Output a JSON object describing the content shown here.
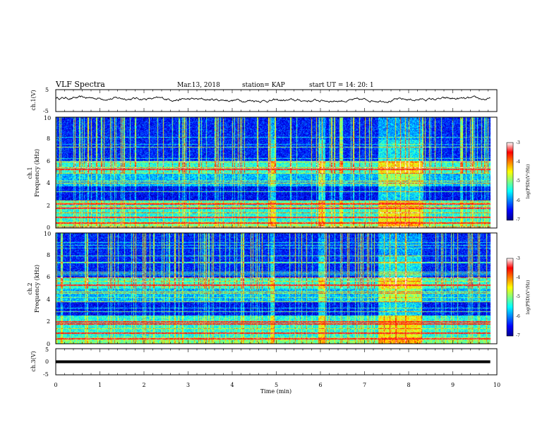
{
  "header": {
    "title": "VLF Spectra",
    "date": "Mar.13, 2018",
    "station": "station= KAP",
    "start_ut": "start  UT =   14: 20: 1"
  },
  "chart_data": [
    {
      "type": "line",
      "id": "ch1-waveform",
      "ylabel": "ch.1(V)",
      "ylim": [
        -5,
        5
      ],
      "yticks": [
        "5",
        "-5"
      ],
      "xlim": [
        0,
        9.85
      ],
      "mean": 0.6,
      "amplitude": 1.6
    },
    {
      "type": "heatmap",
      "id": "ch1-spectrogram",
      "ylabel_top": "ch.1",
      "ylabel": "Frequency  (kHz)",
      "ylim": [
        0,
        10
      ],
      "yticks": [
        "0",
        "2",
        "4",
        "6",
        "8",
        "10"
      ],
      "xlim": [
        0,
        9.85
      ],
      "colorbar": {
        "label": "log(PSD)(V²/Hz)",
        "range": [
          -7,
          -3
        ],
        "ticks": [
          "-3",
          "-4",
          "-5",
          "-6",
          "-7"
        ]
      },
      "segments": [
        {
          "t": [
            4.85,
            4.95
          ],
          "level": "high"
        },
        {
          "t": [
            5.95,
            6.1
          ],
          "level": "high"
        },
        {
          "t": [
            7.3,
            8.3
          ],
          "level": "high"
        }
      ],
      "tones_khz": [
        1.0,
        1.8,
        2.2,
        0.5,
        5.3
      ]
    },
    {
      "type": "heatmap",
      "id": "ch2-spectrogram",
      "ylabel_top": "ch.2",
      "ylabel": "Frequency  (kHz)",
      "ylim": [
        0,
        10
      ],
      "yticks": [
        "0",
        "2",
        "4",
        "6",
        "8",
        "10"
      ],
      "xlim": [
        0,
        9.85
      ],
      "colorbar": {
        "label": "log(PSD)(V²/Hz)",
        "range": [
          -7,
          -3
        ],
        "ticks": [
          "-3",
          "-4",
          "-5",
          "-6",
          "-7"
        ]
      },
      "segments": [
        {
          "t": [
            4.85,
            4.95
          ],
          "level": "high"
        },
        {
          "t": [
            5.95,
            6.1
          ],
          "level": "high"
        },
        {
          "t": [
            7.3,
            8.3
          ],
          "level": "high"
        }
      ],
      "tones_khz": [
        1.0,
        1.8,
        2.0,
        0.5,
        5.3
      ]
    },
    {
      "type": "line",
      "id": "ch3-waveform",
      "ylabel": "ch.3(V)",
      "ylim": [
        -5,
        5
      ],
      "yticks": [
        "5",
        "0",
        "-5"
      ],
      "xlim": [
        0,
        9.85
      ],
      "value": 0
    }
  ],
  "xaxis": {
    "label": "Time  (min)",
    "range": [
      0,
      10
    ],
    "ticks": [
      "0",
      "1",
      "2",
      "3",
      "4",
      "5",
      "6",
      "7",
      "8",
      "9",
      "10"
    ]
  },
  "colors": {
    "colormap": [
      "#00008f",
      "#0000ff",
      "#0080ff",
      "#00ffff",
      "#80ff80",
      "#ffff00",
      "#ff8000",
      "#ff0000",
      "#ffffff"
    ]
  }
}
